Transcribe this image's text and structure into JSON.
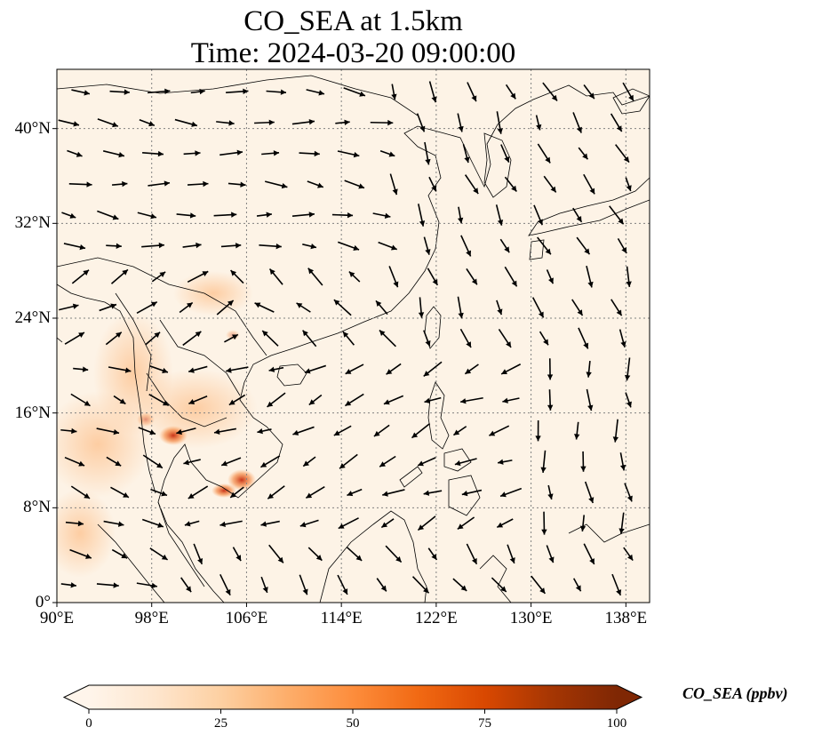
{
  "title": {
    "line1": "CO_SEA at 1.5km",
    "line2": "Time: 2024-03-20 09:00:00"
  },
  "map": {
    "lon_range": [
      90,
      140
    ],
    "lat_range": [
      0,
      45
    ],
    "grid": "dotted",
    "x_ticks": [
      {
        "value": 90,
        "label": "90°E"
      },
      {
        "value": 98,
        "label": "98°E"
      },
      {
        "value": 106,
        "label": "106°E"
      },
      {
        "value": 114,
        "label": "114°E"
      },
      {
        "value": 122,
        "label": "122°E"
      },
      {
        "value": 130,
        "label": "130°E"
      },
      {
        "value": 138,
        "label": "138°E"
      }
    ],
    "y_ticks": [
      {
        "value": 0,
        "label": "0°"
      },
      {
        "value": 8,
        "label": "8°N"
      },
      {
        "value": 16,
        "label": "16°N"
      },
      {
        "value": 24,
        "label": "24°N"
      },
      {
        "value": 32,
        "label": "32°N"
      },
      {
        "value": 40,
        "label": "40°N"
      }
    ]
  },
  "colorbar": {
    "label": "CO_SEA (ppbv)",
    "min": 0,
    "max": 100,
    "extend": "both",
    "colormap": [
      "#fff5eb",
      "#fee6ce",
      "#fdd0a2",
      "#fdae6b",
      "#fd8d3c",
      "#f16913",
      "#d94801",
      "#a63603",
      "#7f2704"
    ],
    "ticks": [
      {
        "value": 0,
        "label": "0"
      },
      {
        "value": 25,
        "label": "25"
      },
      {
        "value": 50,
        "label": "50"
      },
      {
        "value": 75,
        "label": "75"
      },
      {
        "value": 100,
        "label": "100"
      }
    ]
  },
  "colors": {
    "background": "#fdf3e6",
    "coast": "#000000",
    "grid": "#808080",
    "arrow": "#000000"
  }
}
